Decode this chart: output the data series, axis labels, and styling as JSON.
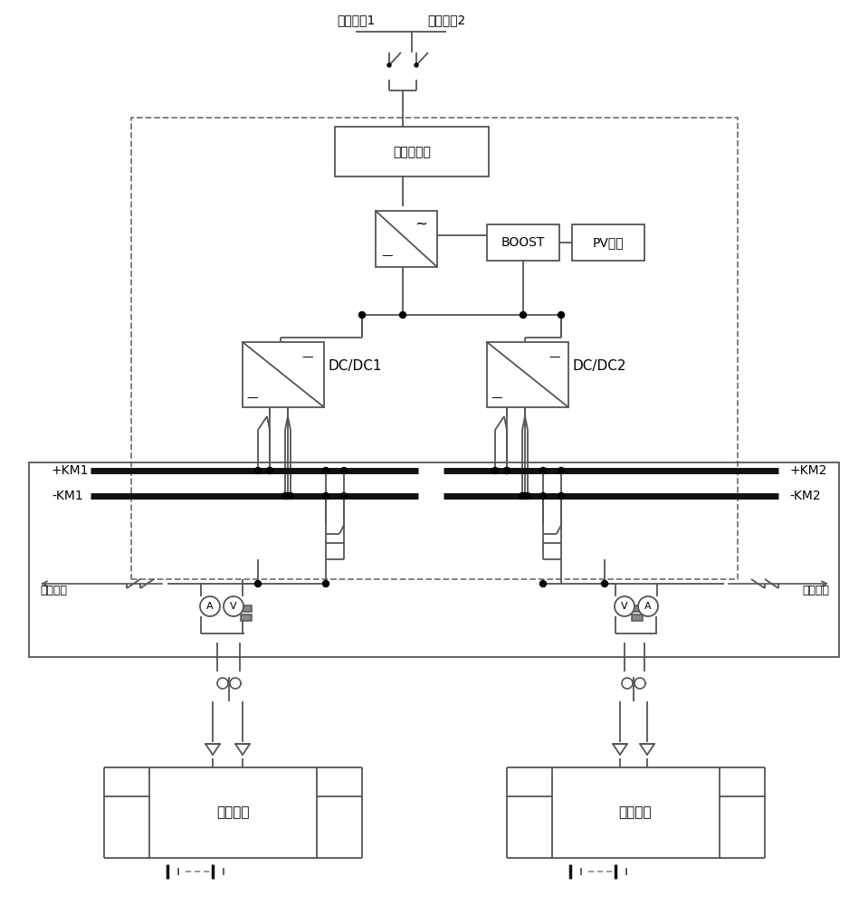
{
  "bg_color": "#ffffff",
  "lc": "#555555",
  "tc": "#111111",
  "labels": {
    "ac1": "交流电源1",
    "ac2": "交流电源2",
    "dual_switch": "双电源切换",
    "boost": "BOOST",
    "pv": "PV阵列",
    "dcdc1": "DC/DC1",
    "dcdc2": "DC/DC2",
    "km1_pos": "+KM1",
    "km1_neg": "-KM1",
    "km2_pos": "+KM2",
    "km2_neg": "-KM2",
    "test1": "试验回路",
    "test2": "试验回路",
    "battery1": "蓄电池组",
    "battery2": "蓄电池组"
  }
}
